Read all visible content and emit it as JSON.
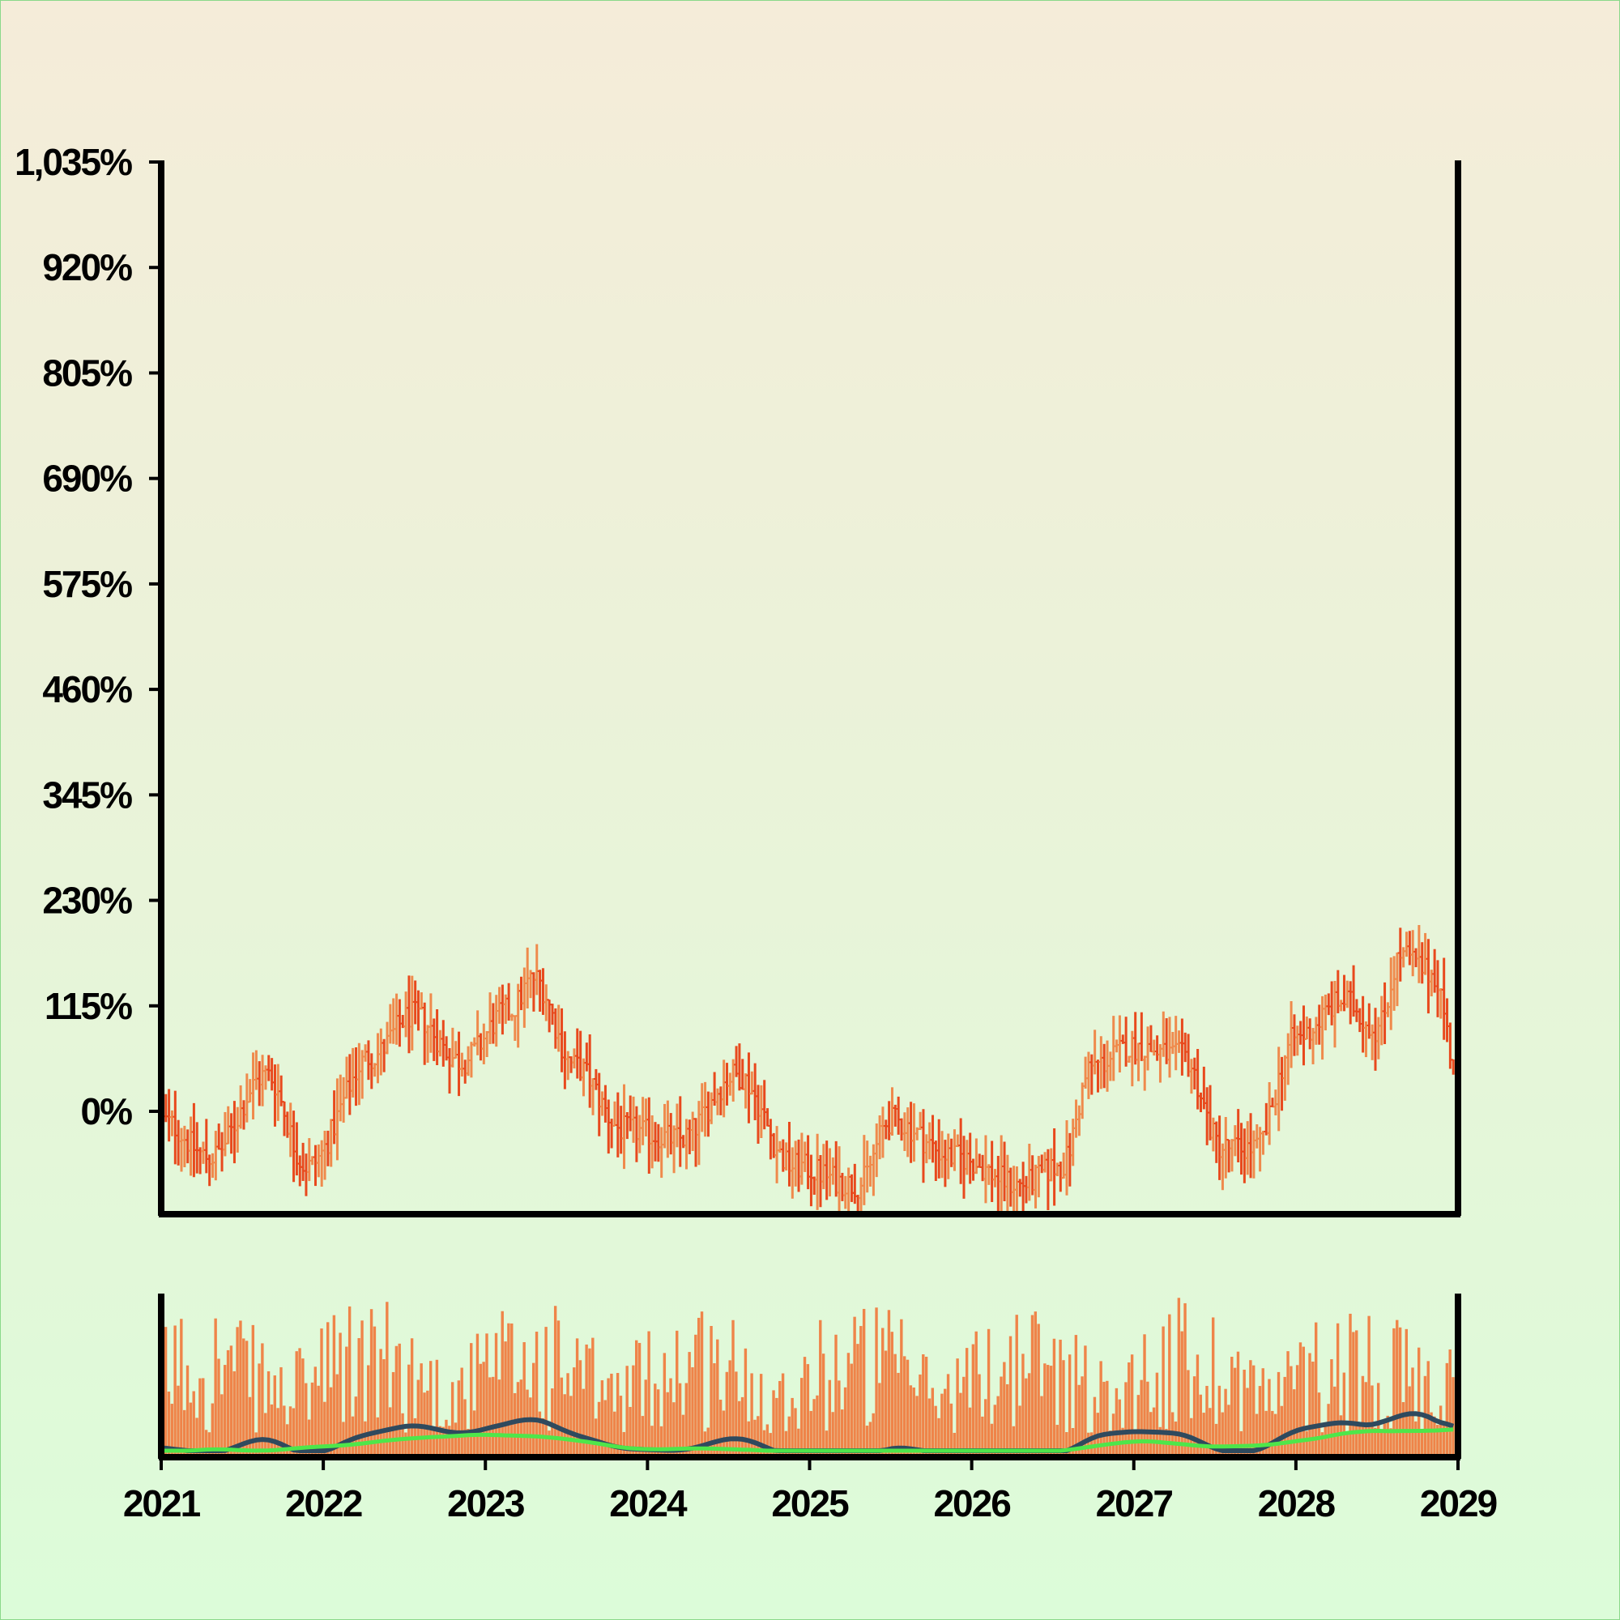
{
  "colors": {
    "up": "#ef8a4c",
    "down": "#e8491d",
    "volume": "#ef8449",
    "ma_fast": "#2f4a5e",
    "ma_slow": "#4ee64a",
    "axis": "#000000"
  },
  "chart_data": {
    "type": "ohlc",
    "title": "",
    "xlabel": "",
    "ylabel": "",
    "price_unit": "%",
    "ylim": [
      -108,
      1035
    ],
    "yticks": [
      "1,035%",
      "920%",
      "805%",
      "690%",
      "575%",
      "460%",
      "345%",
      "230%",
      "115%",
      "0%"
    ],
    "ytick_values": [
      1035,
      920,
      805,
      690,
      575,
      460,
      345,
      230,
      115,
      0
    ],
    "xticks": [
      "2021",
      "2022",
      "2023",
      "2024",
      "2025",
      "2026",
      "2027",
      "2028",
      "2029"
    ],
    "xlim": [
      "2021-01",
      "2029-01"
    ],
    "bar_interval": "weekly",
    "ohlc_anchors": [
      {
        "date": "2021.0",
        "value": -10
      },
      {
        "date": "2021.3",
        "value": -50
      },
      {
        "date": "2021.65",
        "value": 40
      },
      {
        "date": "2021.9",
        "value": -60
      },
      {
        "date": "2022.3",
        "value": 60
      },
      {
        "date": "2022.55",
        "value": 105
      },
      {
        "date": "2022.85",
        "value": 55
      },
      {
        "date": "2023.15",
        "value": 110
      },
      {
        "date": "2023.3",
        "value": 145
      },
      {
        "date": "2023.55",
        "value": 50
      },
      {
        "date": "2023.85",
        "value": -20
      },
      {
        "date": "2024.2",
        "value": -30
      },
      {
        "date": "2024.55",
        "value": 40
      },
      {
        "date": "2024.9",
        "value": -60
      },
      {
        "date": "2025.3",
        "value": -80
      },
      {
        "date": "2025.5",
        "value": -10
      },
      {
        "date": "2025.9",
        "value": -50
      },
      {
        "date": "2026.3",
        "value": -80
      },
      {
        "date": "2026.55",
        "value": -60
      },
      {
        "date": "2026.75",
        "value": 50
      },
      {
        "date": "2027.0",
        "value": 70
      },
      {
        "date": "2027.3",
        "value": 60
      },
      {
        "date": "2027.55",
        "value": -40
      },
      {
        "date": "2027.75",
        "value": -40
      },
      {
        "date": "2028.0",
        "value": 80
      },
      {
        "date": "2028.3",
        "value": 120
      },
      {
        "date": "2028.5",
        "value": 90
      },
      {
        "date": "2028.65",
        "value": 170
      },
      {
        "date": "2028.85",
        "value": 150
      },
      {
        "date": "2029.0",
        "value": 40
      }
    ],
    "bar_range": 60,
    "volume": {
      "series_colors": {
        "bars": "volume"
      },
      "moving_averages": [
        "fast",
        "slow"
      ]
    }
  }
}
